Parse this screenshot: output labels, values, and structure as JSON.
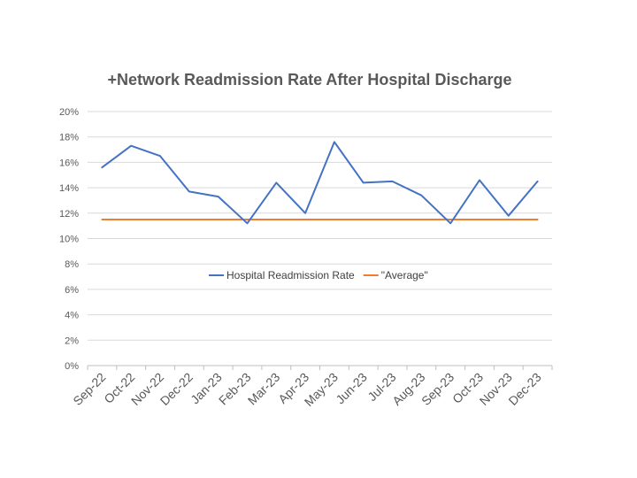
{
  "chart_data": {
    "type": "line",
    "title": "+Network Readmission Rate After Hospital Discharge",
    "categories": [
      "Sep-22",
      "Oct-22",
      "Nov-22",
      "Dec-22",
      "Jan-23",
      "Feb-23",
      "Mar-23",
      "Apr-23",
      "May-23",
      "Jun-23",
      "Jul-23",
      "Aug-23",
      "Sep-23",
      "Oct-23",
      "Nov-23",
      "Dec-23"
    ],
    "series": [
      {
        "name": "Hospital Readmission Rate",
        "color": "#4472C4",
        "values": [
          15.6,
          17.3,
          16.5,
          13.7,
          13.3,
          11.2,
          14.4,
          12.0,
          17.6,
          14.4,
          14.5,
          13.4,
          11.2,
          14.6,
          11.8,
          14.5
        ]
      },
      {
        "name": "\"Average\"",
        "color": "#ED7D31",
        "values": [
          11.5,
          11.5,
          11.5,
          11.5,
          11.5,
          11.5,
          11.5,
          11.5,
          11.5,
          11.5,
          11.5,
          11.5,
          11.5,
          11.5,
          11.5,
          11.5
        ]
      }
    ],
    "yticks": [
      "0%",
      "2%",
      "4%",
      "6%",
      "8%",
      "10%",
      "12%",
      "14%",
      "16%",
      "18%",
      "20%"
    ],
    "ylim": [
      0,
      20
    ],
    "ystep": 2,
    "grid": true,
    "legend": "center"
  }
}
